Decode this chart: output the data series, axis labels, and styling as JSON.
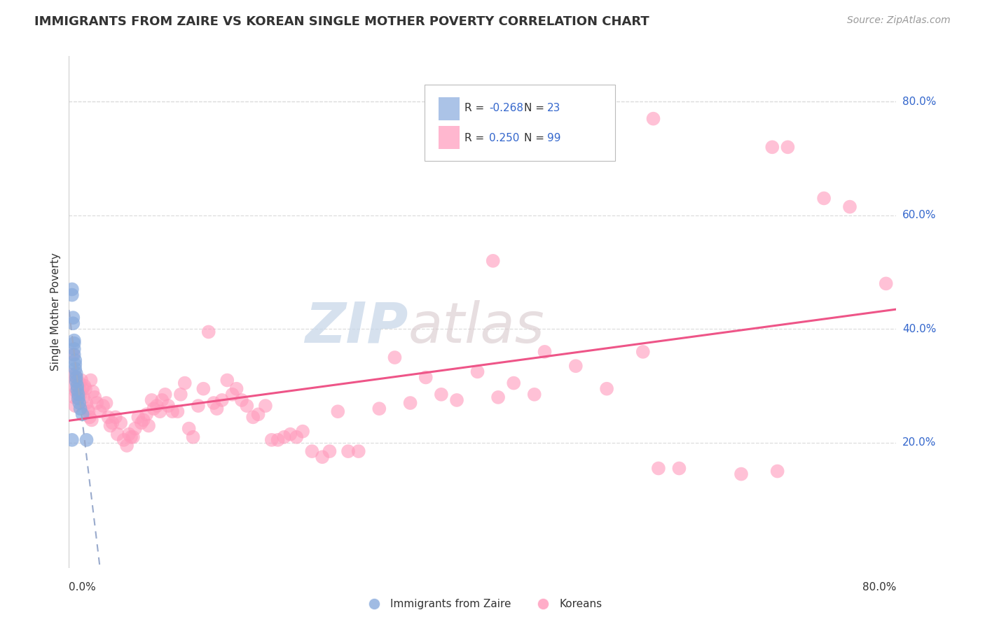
{
  "title": "IMMIGRANTS FROM ZAIRE VS KOREAN SINGLE MOTHER POVERTY CORRELATION CHART",
  "source": "Source: ZipAtlas.com",
  "ylabel": "Single Mother Poverty",
  "ytick_labels": [
    "20.0%",
    "40.0%",
    "60.0%",
    "80.0%"
  ],
  "ytick_values": [
    0.2,
    0.4,
    0.6,
    0.8
  ],
  "xlim": [
    0.0,
    0.8
  ],
  "ylim": [
    -0.02,
    0.88
  ],
  "blue_color": "#88AADD",
  "pink_color": "#FF99BB",
  "blue_line_color": "#99AACC",
  "pink_line_color": "#EE5588",
  "watermark_zip_color": "#C5D5E8",
  "watermark_atlas_color": "#D8C8CC",
  "zaire_points": [
    [
      0.003,
      0.47
    ],
    [
      0.003,
      0.46
    ],
    [
      0.004,
      0.42
    ],
    [
      0.004,
      0.41
    ],
    [
      0.005,
      0.38
    ],
    [
      0.005,
      0.375
    ],
    [
      0.005,
      0.365
    ],
    [
      0.005,
      0.355
    ],
    [
      0.006,
      0.345
    ],
    [
      0.006,
      0.338
    ],
    [
      0.006,
      0.33
    ],
    [
      0.007,
      0.322
    ],
    [
      0.007,
      0.315
    ],
    [
      0.007,
      0.308
    ],
    [
      0.008,
      0.3
    ],
    [
      0.008,
      0.293
    ],
    [
      0.009,
      0.285
    ],
    [
      0.009,
      0.278
    ],
    [
      0.01,
      0.27
    ],
    [
      0.011,
      0.26
    ],
    [
      0.013,
      0.25
    ],
    [
      0.017,
      0.205
    ],
    [
      0.003,
      0.205
    ]
  ],
  "korean_points": [
    [
      0.003,
      0.32
    ],
    [
      0.004,
      0.355
    ],
    [
      0.004,
      0.3
    ],
    [
      0.005,
      0.28
    ],
    [
      0.006,
      0.265
    ],
    [
      0.007,
      0.29
    ],
    [
      0.007,
      0.315
    ],
    [
      0.008,
      0.3
    ],
    [
      0.009,
      0.28
    ],
    [
      0.01,
      0.305
    ],
    [
      0.01,
      0.295
    ],
    [
      0.011,
      0.285
    ],
    [
      0.012,
      0.31
    ],
    [
      0.013,
      0.295
    ],
    [
      0.014,
      0.28
    ],
    [
      0.015,
      0.3
    ],
    [
      0.016,
      0.295
    ],
    [
      0.017,
      0.27
    ],
    [
      0.018,
      0.26
    ],
    [
      0.019,
      0.255
    ],
    [
      0.02,
      0.245
    ],
    [
      0.021,
      0.31
    ],
    [
      0.022,
      0.24
    ],
    [
      0.023,
      0.29
    ],
    [
      0.025,
      0.28
    ],
    [
      0.027,
      0.27
    ],
    [
      0.03,
      0.255
    ],
    [
      0.033,
      0.265
    ],
    [
      0.036,
      0.27
    ],
    [
      0.038,
      0.245
    ],
    [
      0.04,
      0.23
    ],
    [
      0.042,
      0.235
    ],
    [
      0.045,
      0.245
    ],
    [
      0.047,
      0.215
    ],
    [
      0.05,
      0.235
    ],
    [
      0.053,
      0.205
    ],
    [
      0.056,
      0.195
    ],
    [
      0.058,
      0.215
    ],
    [
      0.06,
      0.21
    ],
    [
      0.062,
      0.21
    ],
    [
      0.064,
      0.225
    ],
    [
      0.067,
      0.245
    ],
    [
      0.07,
      0.235
    ],
    [
      0.072,
      0.24
    ],
    [
      0.075,
      0.25
    ],
    [
      0.077,
      0.23
    ],
    [
      0.08,
      0.275
    ],
    [
      0.082,
      0.26
    ],
    [
      0.085,
      0.265
    ],
    [
      0.088,
      0.255
    ],
    [
      0.09,
      0.275
    ],
    [
      0.093,
      0.285
    ],
    [
      0.096,
      0.265
    ],
    [
      0.1,
      0.255
    ],
    [
      0.105,
      0.255
    ],
    [
      0.108,
      0.285
    ],
    [
      0.112,
      0.305
    ],
    [
      0.116,
      0.225
    ],
    [
      0.12,
      0.21
    ],
    [
      0.125,
      0.265
    ],
    [
      0.13,
      0.295
    ],
    [
      0.135,
      0.395
    ],
    [
      0.14,
      0.27
    ],
    [
      0.143,
      0.26
    ],
    [
      0.148,
      0.275
    ],
    [
      0.153,
      0.31
    ],
    [
      0.158,
      0.285
    ],
    [
      0.162,
      0.295
    ],
    [
      0.167,
      0.275
    ],
    [
      0.172,
      0.265
    ],
    [
      0.178,
      0.245
    ],
    [
      0.183,
      0.25
    ],
    [
      0.19,
      0.265
    ],
    [
      0.196,
      0.205
    ],
    [
      0.202,
      0.205
    ],
    [
      0.208,
      0.21
    ],
    [
      0.214,
      0.215
    ],
    [
      0.22,
      0.21
    ],
    [
      0.226,
      0.22
    ],
    [
      0.235,
      0.185
    ],
    [
      0.245,
      0.175
    ],
    [
      0.252,
      0.185
    ],
    [
      0.26,
      0.255
    ],
    [
      0.27,
      0.185
    ],
    [
      0.28,
      0.185
    ],
    [
      0.3,
      0.26
    ],
    [
      0.315,
      0.35
    ],
    [
      0.33,
      0.27
    ],
    [
      0.345,
      0.315
    ],
    [
      0.36,
      0.285
    ],
    [
      0.375,
      0.275
    ],
    [
      0.395,
      0.325
    ],
    [
      0.415,
      0.28
    ],
    [
      0.43,
      0.305
    ],
    [
      0.45,
      0.285
    ],
    [
      0.41,
      0.52
    ],
    [
      0.46,
      0.36
    ],
    [
      0.49,
      0.335
    ],
    [
      0.52,
      0.295
    ],
    [
      0.555,
      0.36
    ],
    [
      0.57,
      0.155
    ],
    [
      0.59,
      0.155
    ],
    [
      0.65,
      0.145
    ],
    [
      0.685,
      0.15
    ],
    [
      0.68,
      0.72
    ],
    [
      0.695,
      0.72
    ],
    [
      0.73,
      0.63
    ],
    [
      0.755,
      0.615
    ],
    [
      0.79,
      0.48
    ],
    [
      0.565,
      0.77
    ]
  ]
}
